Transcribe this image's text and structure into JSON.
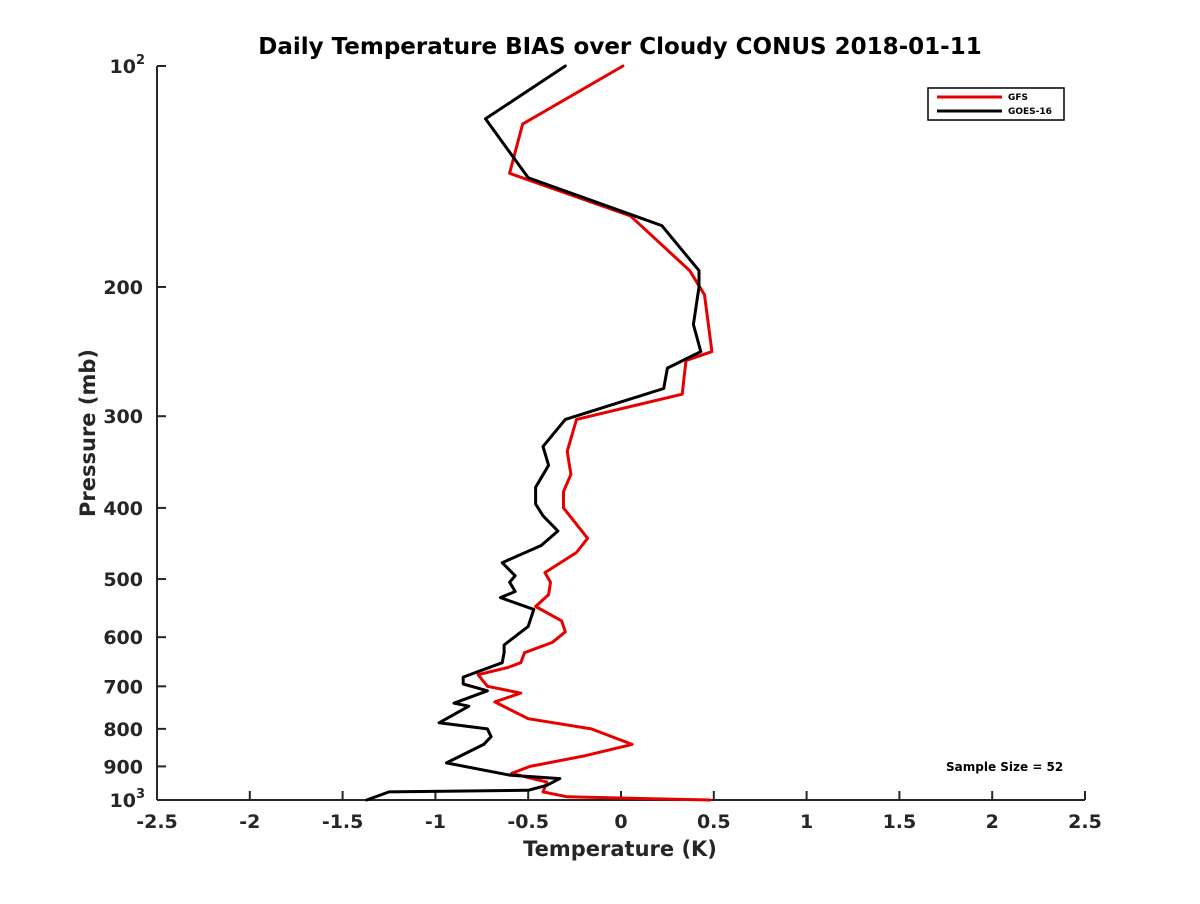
{
  "chart_data": {
    "type": "line",
    "title": "Daily Temperature BIAS over Cloudy CONUS 2018-01-11",
    "xlabel": "Temperature (K)",
    "ylabel": "Pressure (mb)",
    "xlim": [
      -2.5,
      2.5
    ],
    "ylim": [
      100,
      1000
    ],
    "y_scale": "log",
    "y_reversed": true,
    "grid": false,
    "legend_position": "top-right",
    "x_ticks": [
      {
        "value": -2.5,
        "label": "-2.5"
      },
      {
        "value": -2,
        "label": "-2"
      },
      {
        "value": -1.5,
        "label": "-1.5"
      },
      {
        "value": -1,
        "label": "-1"
      },
      {
        "value": -0.5,
        "label": "-0.5"
      },
      {
        "value": 0,
        "label": "0"
      },
      {
        "value": 0.5,
        "label": "0.5"
      },
      {
        "value": 1,
        "label": "1"
      },
      {
        "value": 1.5,
        "label": "1.5"
      },
      {
        "value": 2,
        "label": "2"
      },
      {
        "value": 2.5,
        "label": "2.5"
      }
    ],
    "y_ticks": [
      {
        "value": 100,
        "label": "10",
        "sup": "2"
      },
      {
        "value": 200,
        "label": "200",
        "sup": ""
      },
      {
        "value": 300,
        "label": "300",
        "sup": ""
      },
      {
        "value": 400,
        "label": "400",
        "sup": ""
      },
      {
        "value": 500,
        "label": "500",
        "sup": ""
      },
      {
        "value": 600,
        "label": "600",
        "sup": ""
      },
      {
        "value": 700,
        "label": "700",
        "sup": ""
      },
      {
        "value": 800,
        "label": "800",
        "sup": ""
      },
      {
        "value": 900,
        "label": "900",
        "sup": ""
      },
      {
        "value": 1000,
        "label": "10",
        "sup": "3"
      }
    ],
    "series": [
      {
        "name": "GFS",
        "color": "#e60000",
        "x": [
          0.01,
          -0.53,
          -0.6,
          0.05,
          0.37,
          0.45,
          0.49,
          0.35,
          0.33,
          -0.24,
          -0.29,
          -0.27,
          -0.31,
          -0.31,
          -0.18,
          -0.24,
          -0.41,
          -0.38,
          -0.39,
          -0.46,
          -0.32,
          -0.3,
          -0.37,
          -0.52,
          -0.54,
          -0.61,
          -0.77,
          -0.72,
          -0.54,
          -0.68,
          -0.5,
          -0.16,
          0.06,
          -0.19,
          -0.49,
          -0.59,
          -0.4,
          -0.42,
          -0.29,
          0.48
        ],
        "y": [
          100,
          120,
          140,
          160,
          190,
          205,
          245,
          252,
          280,
          303,
          335,
          360,
          380,
          400,
          440,
          460,
          490,
          505,
          525,
          545,
          570,
          590,
          610,
          630,
          650,
          660,
          675,
          700,
          715,
          735,
          775,
          800,
          840,
          870,
          900,
          920,
          945,
          975,
          990,
          1000
        ]
      },
      {
        "name": "GOES-16",
        "color": "#000000",
        "x": [
          -0.3,
          -0.73,
          -0.5,
          0.22,
          0.42,
          0.42,
          0.39,
          0.43,
          0.25,
          0.23,
          -0.3,
          -0.42,
          -0.39,
          -0.46,
          -0.46,
          -0.42,
          -0.34,
          -0.43,
          -0.64,
          -0.57,
          -0.6,
          -0.57,
          -0.65,
          -0.47,
          -0.5,
          -0.63,
          -0.63,
          -0.64,
          -0.85,
          -0.85,
          -0.72,
          -0.9,
          -0.82,
          -0.98,
          -0.72,
          -0.7,
          -0.74,
          -0.94,
          -0.6,
          -0.33,
          -0.4,
          -0.5,
          -1.25,
          -1.37
        ],
        "y": [
          100,
          118,
          142,
          165,
          190,
          200,
          225,
          245,
          258,
          275,
          303,
          330,
          350,
          375,
          395,
          410,
          430,
          450,
          475,
          495,
          505,
          520,
          530,
          550,
          580,
          615,
          630,
          650,
          680,
          695,
          710,
          738,
          745,
          785,
          800,
          820,
          840,
          890,
          925,
          935,
          955,
          970,
          975,
          1000
        ]
      }
    ],
    "annotation": "Sample Size = 52"
  }
}
